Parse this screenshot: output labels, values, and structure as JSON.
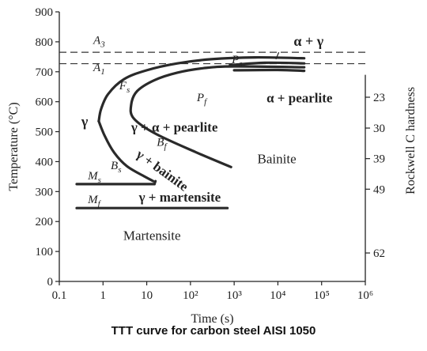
{
  "caption": "TTT curve for carbon steel AISI 1050",
  "chart_data": {
    "type": "line",
    "xlabel": "Time (s)",
    "ylabel": "Temperature (°C)",
    "y2label": "Rockwell C hardness",
    "x_scale": "log",
    "xlim": [
      0.1,
      1000000
    ],
    "ylim": [
      0,
      900
    ],
    "x_ticks": [
      {
        "value": 0.1,
        "label": "0.1"
      },
      {
        "value": 1,
        "label": "1"
      },
      {
        "value": 10,
        "label": "10"
      },
      {
        "value": 100,
        "label": "10²"
      },
      {
        "value": 1000,
        "label": "10³"
      },
      {
        "value": 10000,
        "label": "10⁴"
      },
      {
        "value": 100000,
        "label": "10⁵"
      },
      {
        "value": 1000000,
        "label": "10⁶"
      }
    ],
    "y_ticks": [
      0,
      100,
      200,
      300,
      400,
      500,
      600,
      700,
      800,
      900
    ],
    "y2_ticks": [
      {
        "temp": 615,
        "label": "23"
      },
      {
        "temp": 512,
        "label": "30"
      },
      {
        "temp": 410,
        "label": "39"
      },
      {
        "temp": 308,
        "label": "49"
      },
      {
        "temp": 95,
        "label": "62"
      }
    ],
    "reference_lines": [
      {
        "label": "A₃",
        "temperature": 765,
        "style": "dashed"
      },
      {
        "label": "A₁",
        "temperature": 727,
        "style": "dashed"
      }
    ],
    "series": [
      {
        "key": "start",
        "points": [
          [
            0.8,
            535
          ],
          [
            0.9,
            575
          ],
          [
            1.3,
            625
          ],
          [
            3,
            675
          ],
          [
            10,
            705
          ],
          [
            50,
            728
          ],
          [
            300,
            742
          ],
          [
            3000,
            748
          ],
          [
            40000,
            745
          ]
        ]
      },
      {
        "key": "pearlite_start",
        "points": [
          [
            800,
            722
          ],
          [
            5000,
            730
          ],
          [
            40000,
            728
          ]
        ]
      },
      {
        "key": "finish",
        "points": [
          [
            850,
            382
          ],
          [
            130,
            432
          ],
          [
            15,
            495
          ],
          [
            5,
            545
          ],
          [
            4.4,
            590
          ],
          [
            6,
            635
          ],
          [
            15,
            672
          ],
          [
            50,
            697
          ],
          [
            200,
            712
          ],
          [
            1000,
            718
          ],
          [
            40000,
            715
          ]
        ]
      },
      {
        "key": "finish_upper",
        "points": [
          [
            1000,
            705
          ],
          [
            10000,
            706
          ],
          [
            40000,
            703
          ]
        ]
      },
      {
        "key": "bainite_start_lower",
        "points": [
          [
            0.8,
            535
          ],
          [
            1.1,
            485
          ],
          [
            1.8,
            430
          ],
          [
            3.5,
            385
          ],
          [
            9,
            350
          ],
          [
            14,
            335
          ]
        ]
      },
      {
        "key": "Ms",
        "points": [
          [
            0.25,
            325
          ],
          [
            15,
            325
          ]
        ]
      },
      {
        "key": "ms_corner",
        "points": [
          [
            15,
            325
          ],
          [
            15.8,
            335
          ]
        ]
      },
      {
        "key": "Mf",
        "points": [
          [
            0.25,
            245
          ],
          [
            700,
            245
          ]
        ]
      }
    ],
    "annotations": [
      {
        "text": "A",
        "sub": "3",
        "x": 0.6,
        "y": 793,
        "size": 15
      },
      {
        "text": "A",
        "sub": "1",
        "x": 0.6,
        "y": 702,
        "size": 15
      },
      {
        "text": "F",
        "sub": "s",
        "x": 2.35,
        "y": 642,
        "size": 15
      },
      {
        "text": "P",
        "sub": "s",
        "x": 880,
        "y": 728,
        "size": 15
      },
      {
        "text": "P",
        "sub": "f",
        "x": 140,
        "y": 602,
        "size": 15
      },
      {
        "text": "B",
        "sub": "f",
        "x": 17,
        "y": 453,
        "size": 15
      },
      {
        "text": "B",
        "sub": "s",
        "x": 1.5,
        "y": 375,
        "size": 15
      },
      {
        "text": "M",
        "sub": "s",
        "x": 0.45,
        "y": 340,
        "size": 15
      },
      {
        "text": "M",
        "sub": "f",
        "x": 0.45,
        "y": 261,
        "size": 15
      },
      {
        "text": "γ",
        "x": 0.32,
        "y": 518,
        "size": 18,
        "weight": "bold"
      },
      {
        "text": "α + γ",
        "x": 23000,
        "y": 786,
        "size": 18,
        "weight": "bold"
      },
      {
        "text": "α + pearlite",
        "x": 5500,
        "y": 598,
        "size": 17,
        "weight": "bold"
      },
      {
        "text": "γ + α + pearlite",
        "x": 4.4,
        "y": 500,
        "size": 17,
        "weight": "bold"
      },
      {
        "text": "Bainite",
        "x": 3400,
        "y": 395,
        "size": 17
      },
      {
        "text": "γ + martensite",
        "x": 6.6,
        "y": 267,
        "size": 17,
        "weight": "bold"
      },
      {
        "text": "Martensite",
        "x": 2.9,
        "y": 139,
        "size": 17
      },
      {
        "text": "γ + bainite",
        "x": 5.5,
        "y": 418,
        "size": 17,
        "weight": "bold",
        "rotate": 36
      }
    ],
    "grid": false,
    "legend": "none"
  }
}
